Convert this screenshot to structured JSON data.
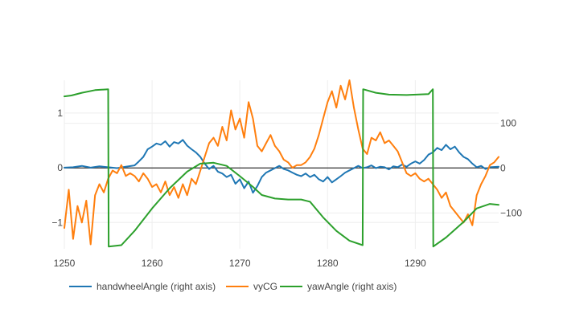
{
  "chart_data": {
    "type": "line",
    "title": "",
    "xlabel": "",
    "ylabel": "",
    "y2label": "",
    "xlim": [
      1250,
      1299.5
    ],
    "ylim": [
      -1.48,
      1.6
    ],
    "y2lim": [
      -180,
      196
    ],
    "x_ticks": [
      1250,
      1260,
      1270,
      1280,
      1290
    ],
    "y_ticks": [
      {
        "value": 1,
        "label": "1"
      },
      {
        "value": 0,
        "label": "0"
      },
      {
        "value": -1,
        "label": "−1"
      }
    ],
    "y2_ticks": [
      {
        "value": 100,
        "label": "100"
      },
      {
        "value": 0,
        "label": "0"
      },
      {
        "value": -100,
        "label": "−100"
      }
    ],
    "grid": true,
    "legend_position": "bottom",
    "series": [
      {
        "name": "handwheelAngle (right axis)",
        "axis": "right",
        "color": "#1f77b4",
        "points": [
          [
            1250,
            1
          ],
          [
            1251,
            2
          ],
          [
            1252,
            5
          ],
          [
            1253,
            1
          ],
          [
            1254,
            4
          ],
          [
            1255,
            2
          ],
          [
            1256,
            0
          ],
          [
            1257,
            3
          ],
          [
            1258,
            6
          ],
          [
            1258.5,
            15
          ],
          [
            1259,
            25
          ],
          [
            1259.5,
            42
          ],
          [
            1260,
            48
          ],
          [
            1260.5,
            55
          ],
          [
            1261,
            52
          ],
          [
            1261.5,
            60
          ],
          [
            1262,
            48
          ],
          [
            1262.5,
            58
          ],
          [
            1263,
            55
          ],
          [
            1263.5,
            63
          ],
          [
            1264,
            50
          ],
          [
            1264.5,
            42
          ],
          [
            1265,
            35
          ],
          [
            1265.5,
            25
          ],
          [
            1266,
            10
          ],
          [
            1266.5,
            -2
          ],
          [
            1267,
            5
          ],
          [
            1267.5,
            -8
          ],
          [
            1268,
            -12
          ],
          [
            1268.5,
            -20
          ],
          [
            1269,
            -15
          ],
          [
            1269.5,
            -35
          ],
          [
            1270,
            -25
          ],
          [
            1270.5,
            -45
          ],
          [
            1271,
            -30
          ],
          [
            1271.5,
            -55
          ],
          [
            1272,
            -40
          ],
          [
            1272.5,
            -20
          ],
          [
            1273,
            -10
          ],
          [
            1273.5,
            -5
          ],
          [
            1274,
            0
          ],
          [
            1274.5,
            5
          ],
          [
            1275,
            -2
          ],
          [
            1275.5,
            -5
          ],
          [
            1276,
            -10
          ],
          [
            1276.5,
            -15
          ],
          [
            1277,
            -18
          ],
          [
            1277.5,
            -12
          ],
          [
            1278,
            -20
          ],
          [
            1278.5,
            -15
          ],
          [
            1279,
            -25
          ],
          [
            1279.5,
            -30
          ],
          [
            1280,
            -20
          ],
          [
            1280.5,
            -32
          ],
          [
            1281,
            -25
          ],
          [
            1281.5,
            -18
          ],
          [
            1282,
            -10
          ],
          [
            1282.5,
            -5
          ],
          [
            1283,
            0
          ],
          [
            1283.5,
            5
          ],
          [
            1284,
            0
          ],
          [
            1284.5,
            2
          ],
          [
            1285,
            6
          ],
          [
            1285.5,
            0
          ],
          [
            1286,
            3
          ],
          [
            1286.5,
            2
          ],
          [
            1287,
            -3
          ],
          [
            1287.5,
            4
          ],
          [
            1288,
            2
          ],
          [
            1288.5,
            8
          ],
          [
            1289,
            3
          ],
          [
            1289.5,
            10
          ],
          [
            1290,
            15
          ],
          [
            1290.5,
            10
          ],
          [
            1291,
            18
          ],
          [
            1291.5,
            30
          ],
          [
            1292,
            35
          ],
          [
            1292.5,
            45
          ],
          [
            1293,
            40
          ],
          [
            1293.5,
            52
          ],
          [
            1294,
            42
          ],
          [
            1294.5,
            48
          ],
          [
            1295,
            35
          ],
          [
            1295.5,
            25
          ],
          [
            1296,
            20
          ],
          [
            1296.5,
            10
          ],
          [
            1297,
            2
          ],
          [
            1297.5,
            5
          ],
          [
            1298,
            -2
          ],
          [
            1298.5,
            2
          ],
          [
            1299.5,
            3
          ]
        ]
      },
      {
        "name": "vyCG",
        "axis": "left",
        "color": "#ff7f0e",
        "points": [
          [
            1250,
            -1.1
          ],
          [
            1250.5,
            -0.4
          ],
          [
            1251,
            -1.3
          ],
          [
            1251.5,
            -0.7
          ],
          [
            1252,
            -1.0
          ],
          [
            1252.5,
            -0.6
          ],
          [
            1253,
            -1.4
          ],
          [
            1253.5,
            -0.5
          ],
          [
            1254,
            -0.3
          ],
          [
            1254.5,
            -0.45
          ],
          [
            1255,
            -0.2
          ],
          [
            1255.5,
            -0.05
          ],
          [
            1256,
            -0.1
          ],
          [
            1256.5,
            0.05
          ],
          [
            1257,
            -0.15
          ],
          [
            1257.5,
            -0.1
          ],
          [
            1258,
            -0.15
          ],
          [
            1258.5,
            -0.25
          ],
          [
            1259,
            -0.1
          ],
          [
            1259.5,
            -0.2
          ],
          [
            1260,
            -0.35
          ],
          [
            1260.5,
            -0.3
          ],
          [
            1261,
            -0.45
          ],
          [
            1261.5,
            -0.25
          ],
          [
            1262,
            -0.5
          ],
          [
            1262.5,
            -0.35
          ],
          [
            1263,
            -0.55
          ],
          [
            1263.5,
            -0.3
          ],
          [
            1264,
            -0.5
          ],
          [
            1264.5,
            -0.2
          ],
          [
            1265,
            -0.3
          ],
          [
            1265.5,
            -0.05
          ],
          [
            1266,
            0.2
          ],
          [
            1266.5,
            0.45
          ],
          [
            1267,
            0.55
          ],
          [
            1267.5,
            0.4
          ],
          [
            1268,
            0.75
          ],
          [
            1268.5,
            0.5
          ],
          [
            1269,
            1.05
          ],
          [
            1269.5,
            0.7
          ],
          [
            1270,
            0.9
          ],
          [
            1270.5,
            0.55
          ],
          [
            1271,
            1.2
          ],
          [
            1271.5,
            0.9
          ],
          [
            1272,
            0.4
          ],
          [
            1272.5,
            0.3
          ],
          [
            1273,
            0.45
          ],
          [
            1273.5,
            0.6
          ],
          [
            1274,
            0.4
          ],
          [
            1274.5,
            0.3
          ],
          [
            1275,
            0.15
          ],
          [
            1275.5,
            0.1
          ],
          [
            1276,
            0.0
          ],
          [
            1276.5,
            0.05
          ],
          [
            1277,
            0.05
          ],
          [
            1277.5,
            0.1
          ],
          [
            1278,
            0.2
          ],
          [
            1278.5,
            0.35
          ],
          [
            1279,
            0.6
          ],
          [
            1279.5,
            0.9
          ],
          [
            1280,
            1.2
          ],
          [
            1280.5,
            1.4
          ],
          [
            1281,
            1.1
          ],
          [
            1281.5,
            1.5
          ],
          [
            1282,
            1.25
          ],
          [
            1282.5,
            1.6
          ],
          [
            1283,
            1.1
          ],
          [
            1283.5,
            0.7
          ],
          [
            1284,
            0.35
          ],
          [
            1284.5,
            0.25
          ],
          [
            1285,
            0.55
          ],
          [
            1285.5,
            0.5
          ],
          [
            1286,
            0.65
          ],
          [
            1286.5,
            0.45
          ],
          [
            1287,
            0.5
          ],
          [
            1287.5,
            0.4
          ],
          [
            1288,
            0.3
          ],
          [
            1288.5,
            0.1
          ],
          [
            1289,
            -0.1
          ],
          [
            1289.5,
            -0.15
          ],
          [
            1290,
            -0.1
          ],
          [
            1290.5,
            -0.2
          ],
          [
            1291,
            -0.25
          ],
          [
            1291.5,
            -0.2
          ],
          [
            1292,
            -0.3
          ],
          [
            1292.5,
            -0.4
          ],
          [
            1293,
            -0.55
          ],
          [
            1293.5,
            -0.45
          ],
          [
            1294,
            -0.7
          ],
          [
            1294.5,
            -0.8
          ],
          [
            1295,
            -0.9
          ],
          [
            1295.5,
            -1.0
          ],
          [
            1296,
            -0.85
          ],
          [
            1296.5,
            -1.05
          ],
          [
            1297,
            -0.5
          ],
          [
            1297.5,
            -0.3
          ],
          [
            1298,
            -0.15
          ],
          [
            1298.5,
            0.05
          ],
          [
            1299,
            0.1
          ],
          [
            1299.5,
            0.2
          ]
        ]
      },
      {
        "name": "yawAngle (right axis)",
        "axis": "right",
        "color": "#2ca02c",
        "points": [
          [
            1250,
            160
          ],
          [
            1250.8,
            162
          ],
          [
            1252,
            168
          ],
          [
            1253.5,
            174
          ],
          [
            1255,
            176
          ],
          [
            1255.05,
            -175
          ],
          [
            1256.5,
            -172
          ],
          [
            1258,
            -140
          ],
          [
            1260,
            -90
          ],
          [
            1262,
            -45
          ],
          [
            1264,
            -8
          ],
          [
            1265.5,
            10
          ],
          [
            1267,
            12
          ],
          [
            1268.5,
            5
          ],
          [
            1270,
            -18
          ],
          [
            1271.5,
            -42
          ],
          [
            1272.5,
            -60
          ],
          [
            1274,
            -68
          ],
          [
            1275.5,
            -70
          ],
          [
            1277,
            -70
          ],
          [
            1278,
            -75
          ],
          [
            1279.5,
            -110
          ],
          [
            1281,
            -140
          ],
          [
            1282.5,
            -162
          ],
          [
            1284,
            -172
          ],
          [
            1284.05,
            176
          ],
          [
            1285.5,
            168
          ],
          [
            1287,
            164
          ],
          [
            1289,
            163
          ],
          [
            1291.5,
            165
          ],
          [
            1292,
            176
          ],
          [
            1292.05,
            -175
          ],
          [
            1293.5,
            -155
          ],
          [
            1295.5,
            -120
          ],
          [
            1297,
            -90
          ],
          [
            1298.5,
            -80
          ],
          [
            1299.5,
            -82
          ]
        ]
      }
    ]
  }
}
